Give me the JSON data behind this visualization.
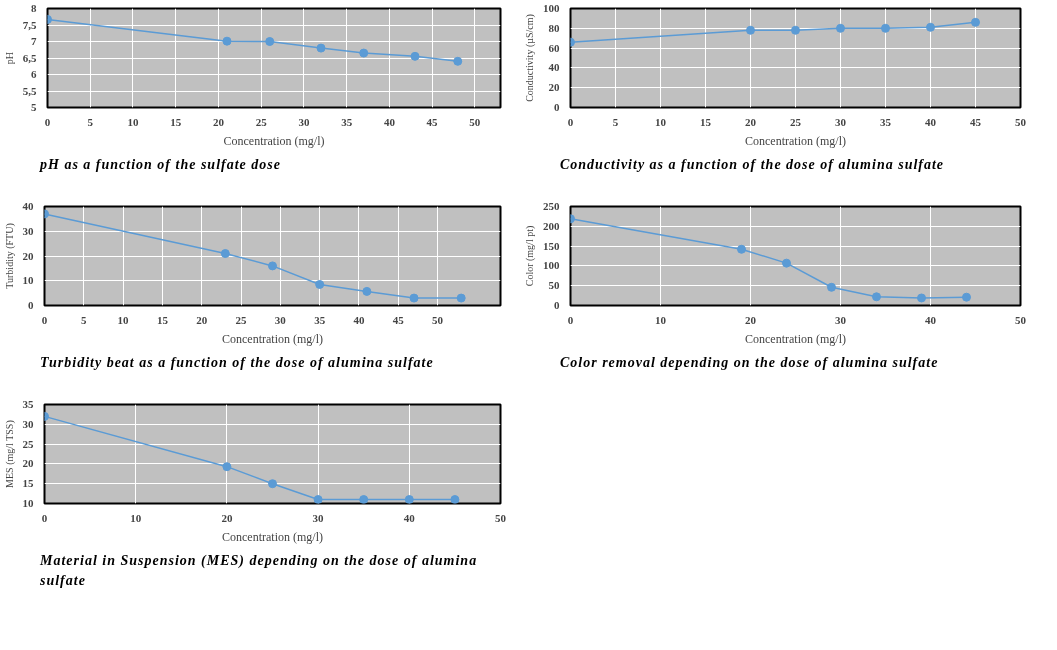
{
  "chart_data": [
    {
      "type": "line",
      "xlabel": "Concentration (mg/l)",
      "ylabel": "pH",
      "x": [
        0,
        21,
        26,
        32,
        37,
        43,
        48
      ],
      "values": [
        7.67,
        7.01,
        7.0,
        6.8,
        6.65,
        6.55,
        6.4
      ],
      "color": "#5b9bd5",
      "marker": "circle",
      "grid": true,
      "xlim": [
        0,
        53
      ],
      "ylim": [
        5,
        8
      ],
      "xticks": [
        0,
        5,
        10,
        15,
        20,
        25,
        30,
        35,
        40,
        45,
        50
      ],
      "yticks": [
        5,
        {
          "value": 5.5,
          "label": "5,5"
        },
        6,
        {
          "value": 6.5,
          "label": "6,5"
        },
        7,
        {
          "value": 7.5,
          "label": "7,5"
        },
        8
      ],
      "annotations": [
        "pH as a function of the sulfate  dose"
      ]
    },
    {
      "type": "line",
      "xlabel": "Concentration (mg/l)",
      "ylabel": "Conductivity (µS/cm)",
      "x": [
        0,
        20,
        25,
        30,
        35,
        40,
        45
      ],
      "values": [
        66,
        78,
        78,
        80,
        80,
        81,
        86
      ],
      "color": "#5b9bd5",
      "marker": "circle",
      "grid": true,
      "xlim": [
        0,
        50
      ],
      "ylim": [
        0,
        100
      ],
      "xticks": [
        0,
        5,
        10,
        15,
        20,
        25,
        30,
        35,
        40,
        45,
        50
      ],
      "yticks": [
        0,
        20,
        40,
        60,
        80,
        100
      ],
      "annotations": [
        "Conductivity as a function of the dose of alumina sulfate"
      ]
    },
    {
      "type": "line",
      "xlabel": "Concentration (mg/l)",
      "ylabel": "Turbidity (FTU)",
      "x": [
        0,
        23,
        29,
        35,
        41,
        47,
        53
      ],
      "values": [
        37,
        21,
        16,
        8.5,
        5.7,
        3,
        3
      ],
      "color": "#5b9bd5",
      "marker": "circle",
      "grid": true,
      "xlim": [
        0,
        58
      ],
      "ylim": [
        0,
        40
      ],
      "xticks": [
        0,
        5,
        10,
        15,
        20,
        25,
        30,
        35,
        40,
        45,
        50
      ],
      "yticks": [
        0,
        10,
        20,
        30,
        40
      ],
      "annotations": [
        "Turbidity beat as a function of the dose of alumina sulfate"
      ]
    },
    {
      "type": "line",
      "xlabel": "Concentration (mg/l)",
      "ylabel": "Color (mg/l pt)",
      "x": [
        0,
        19,
        24,
        29,
        34,
        39,
        44
      ],
      "values": [
        219,
        142,
        107,
        46,
        22,
        19,
        21
      ],
      "color": "#5b9bd5",
      "marker": "circle",
      "grid": true,
      "xlim": [
        0,
        50
      ],
      "ylim": [
        0,
        250
      ],
      "xticks": [
        0,
        10,
        20,
        30,
        40,
        50
      ],
      "yticks": [
        0,
        50,
        100,
        150,
        200,
        250
      ],
      "annotations": [
        "Color removal depending on the dose of alumina sulfate"
      ]
    },
    {
      "type": "line",
      "xlabel": "Concentration (mg/l)",
      "ylabel": "MES (mg/l TSS)",
      "x": [
        0,
        20,
        25,
        30,
        35,
        40,
        45
      ],
      "values": [
        32,
        19.3,
        15,
        11,
        11,
        11,
        11
      ],
      "color": "#5b9bd5",
      "marker": "circle",
      "grid": true,
      "xlim": [
        0,
        50
      ],
      "ylim": [
        10,
        35
      ],
      "xticks": [
        0,
        10,
        20,
        30,
        40,
        50
      ],
      "yticks": [
        10,
        15,
        20,
        25,
        30,
        35
      ],
      "annotations": [
        "Material in Suspension (MES) depending on the dose of alumina sulfate"
      ]
    }
  ]
}
